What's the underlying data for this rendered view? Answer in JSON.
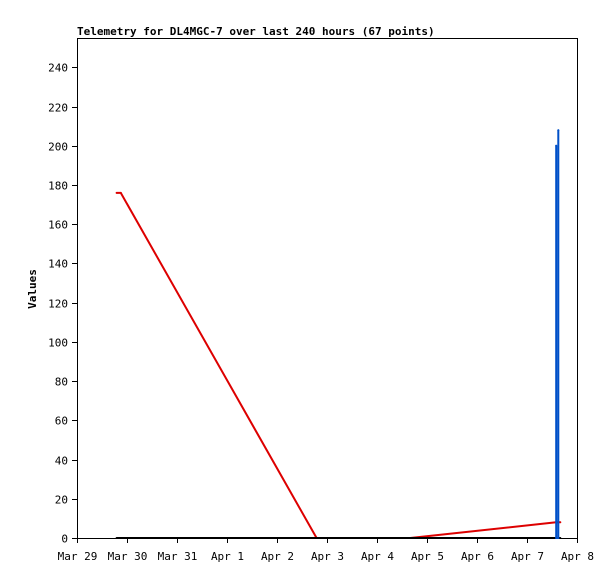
{
  "chart_data": {
    "type": "line",
    "title": "Telemetry for DL4MGC-7 over last 240 hours (67 points)",
    "xlabel": "",
    "ylabel": "Values",
    "ylim": [
      0,
      255
    ],
    "xlim": [
      "2022-03-29T00:00",
      "2022-04-08T00:00"
    ],
    "yticks": [
      0,
      20,
      40,
      60,
      80,
      100,
      120,
      140,
      160,
      180,
      200,
      220,
      240
    ],
    "xticks": [
      {
        "label": "Mar 29",
        "date": "2022-03-29T00:00"
      },
      {
        "label": "Mar 30",
        "date": "2022-03-30T00:00"
      },
      {
        "label": "Mar 31",
        "date": "2022-03-31T00:00"
      },
      {
        "label": "Apr 1",
        "date": "2022-04-01T00:00"
      },
      {
        "label": "Apr 2",
        "date": "2022-04-02T00:00"
      },
      {
        "label": "Apr 3",
        "date": "2022-04-03T00:00"
      },
      {
        "label": "Apr 4",
        "date": "2022-04-04T00:00"
      },
      {
        "label": "Apr 5",
        "date": "2022-04-05T00:00"
      },
      {
        "label": "Apr 6",
        "date": "2022-04-06T00:00"
      },
      {
        "label": "Apr 7",
        "date": "2022-04-07T00:00"
      },
      {
        "label": "Apr 8",
        "date": "2022-04-08T00:00"
      }
    ],
    "grid": false,
    "series": [
      {
        "color": "#dd0000",
        "points": [
          {
            "x": "2022-03-29T19:00",
            "y": 176
          },
          {
            "x": "2022-03-29T21:00",
            "y": 176
          },
          {
            "x": "2022-04-02T19:00",
            "y": 0
          },
          {
            "x": "2022-04-04T16:00",
            "y": 0
          },
          {
            "x": "2022-04-07T14:00",
            "y": 8
          },
          {
            "x": "2022-04-07T16:00",
            "y": 8
          }
        ]
      },
      {
        "color": "#000000",
        "points": [
          {
            "x": "2022-03-29T19:00",
            "y": 0
          },
          {
            "x": "2022-04-07T16:00",
            "y": 0
          }
        ]
      },
      {
        "color": "#0050c8",
        "points": [
          {
            "x": "2022-04-07T14:00",
            "y": 0
          },
          {
            "x": "2022-04-07T14:00",
            "y": 200
          },
          {
            "x": "2022-04-07T14:00",
            "y": 0
          },
          {
            "x": "2022-04-07T15:00",
            "y": 0
          },
          {
            "x": "2022-04-07T15:00",
            "y": 208
          },
          {
            "x": "2022-04-07T15:00",
            "y": 0
          }
        ]
      }
    ]
  }
}
